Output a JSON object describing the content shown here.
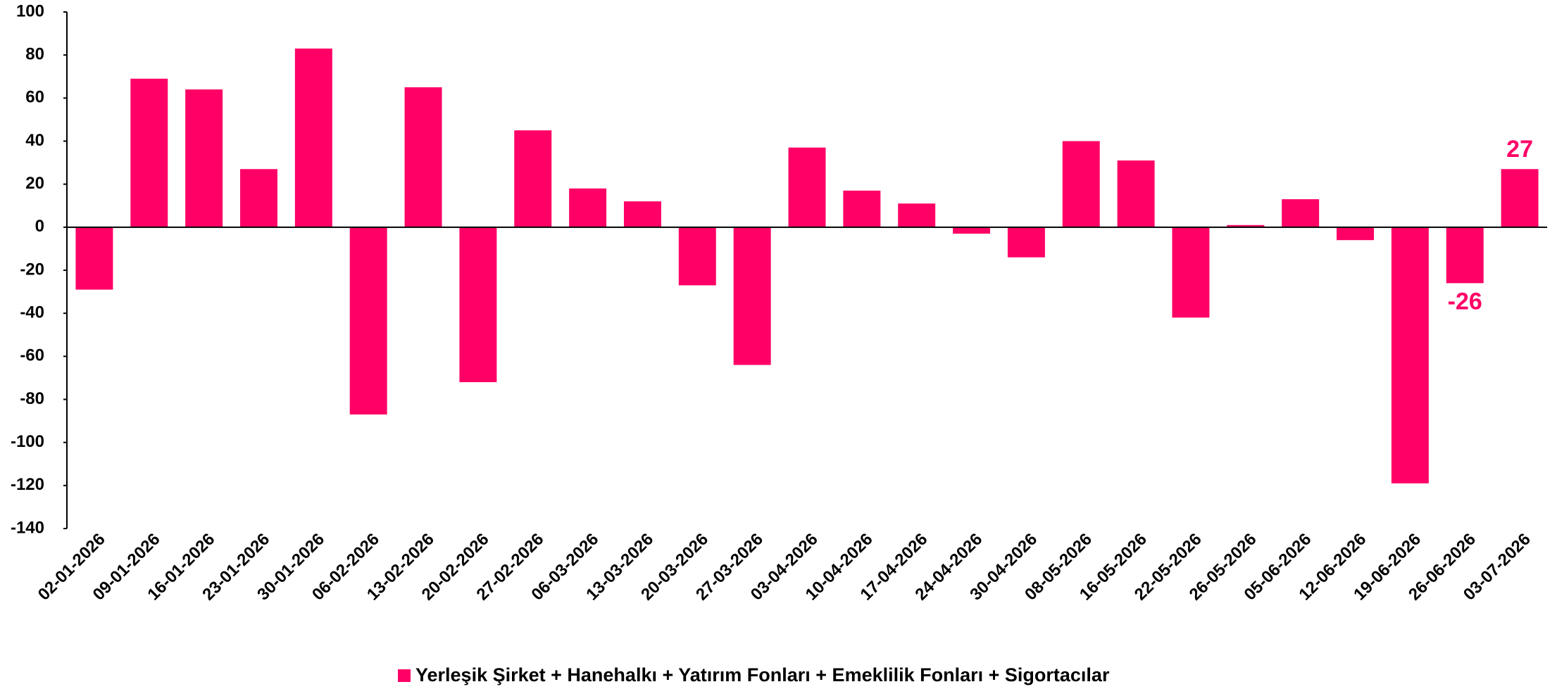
{
  "chart_data": {
    "type": "bar",
    "categories": [
      "02-01-2026",
      "09-01-2026",
      "16-01-2026",
      "23-01-2026",
      "30-01-2026",
      "06-02-2026",
      "13-02-2026",
      "20-02-2026",
      "27-02-2026",
      "06-03-2026",
      "13-03-2026",
      "20-03-2026",
      "27-03-2026",
      "03-04-2026",
      "10-04-2026",
      "17-04-2026",
      "24-04-2026",
      "30-04-2026",
      "08-05-2026",
      "16-05-2026",
      "22-05-2026",
      "26-05-2026",
      "05-06-2026",
      "12-06-2026",
      "19-06-2026",
      "26-06-2026",
      "03-07-2026"
    ],
    "series": [
      {
        "name": "Yerleşik Şirket + Hanehalkı + Yatırım Fonları + Emeklilik Fonları + Sigortacılar",
        "color": "#ff0066",
        "values": [
          -29,
          69,
          64,
          27,
          83,
          -87,
          65,
          -72,
          45,
          18,
          12,
          -27,
          -64,
          37,
          17,
          11,
          -3,
          -14,
          40,
          31,
          -42,
          1,
          13,
          -6,
          -119,
          -26,
          27
        ],
        "value_labels": [
          null,
          null,
          null,
          null,
          null,
          null,
          null,
          null,
          null,
          null,
          null,
          null,
          null,
          null,
          null,
          null,
          null,
          null,
          null,
          null,
          null,
          null,
          null,
          null,
          null,
          "-26",
          "27"
        ]
      }
    ],
    "ylim": [
      -140,
      100
    ],
    "yticks": [
      -140,
      -120,
      -100,
      -80,
      -60,
      -40,
      -20,
      0,
      20,
      40,
      60,
      80,
      100
    ],
    "grid": false,
    "legend": "bottom"
  }
}
